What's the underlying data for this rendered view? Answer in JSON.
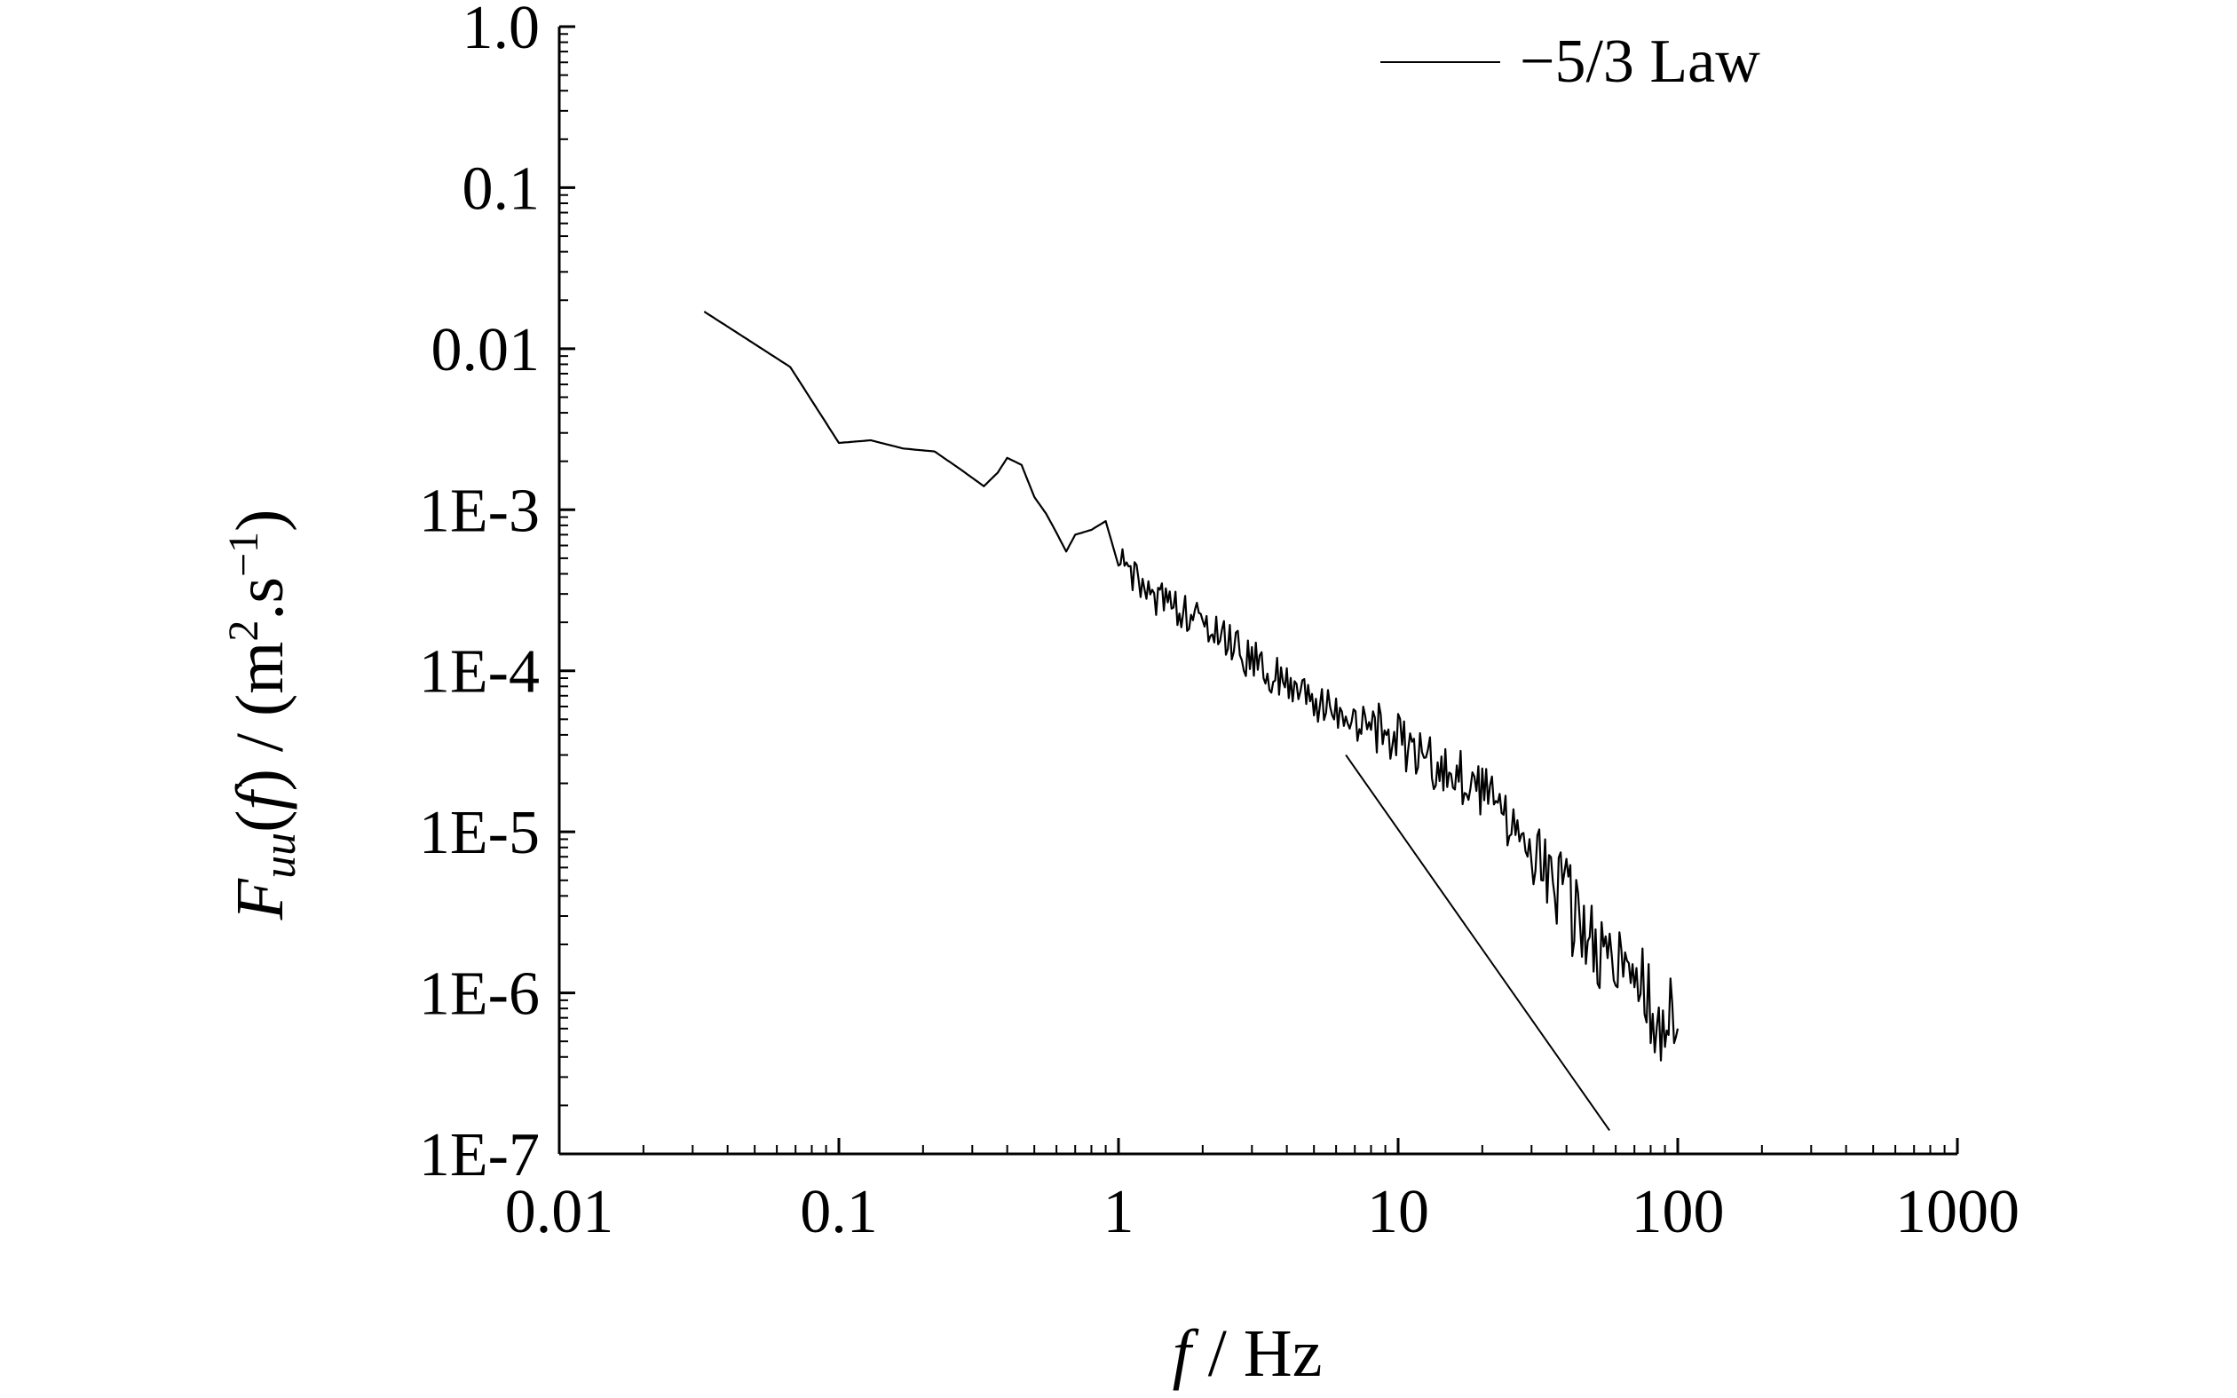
{
  "chart_data": {
    "type": "line",
    "x_scale": "log",
    "y_scale": "log",
    "xlim": [
      0.01,
      1000
    ],
    "ylim": [
      1e-07,
      1.0
    ],
    "grid": false,
    "legend_position": "top-right",
    "x_tick_labels": [
      "0.01",
      "0.1",
      "1",
      "10",
      "100",
      "1000"
    ],
    "y_tick_labels": [
      "1E-7",
      "1E-6",
      "1E-5",
      "1E-4",
      "1E-3",
      "0.01",
      "0.1",
      "1.0"
    ],
    "xlabel": {
      "var": "f",
      "unit": " / Hz"
    },
    "ylabel": {
      "main": "F",
      "sub": "uu",
      "arg": "f",
      "unit_open": " / (m",
      "sup2": "2",
      "mid": ".s",
      "supm1": "−1",
      "close": ")"
    },
    "series": [
      {
        "name": "",
        "style": "noisy",
        "color": "#000000",
        "points": [
          [
            0.033,
            0.017
          ],
          [
            0.067,
            0.0077
          ],
          [
            0.1,
            0.0026
          ],
          [
            0.13,
            0.0027
          ],
          [
            0.17,
            0.0024
          ],
          [
            0.22,
            0.0023
          ],
          [
            0.27,
            0.0018
          ],
          [
            0.33,
            0.0014
          ],
          [
            0.37,
            0.0017
          ],
          [
            0.4,
            0.0021
          ],
          [
            0.45,
            0.0019
          ],
          [
            0.5,
            0.0012
          ],
          [
            0.55,
            0.00095
          ],
          [
            0.6,
            0.00072
          ],
          [
            0.65,
            0.00055
          ],
          [
            0.7,
            0.0007
          ],
          [
            0.8,
            0.00075
          ],
          [
            0.9,
            0.00085
          ],
          [
            1.0,
            0.00045
          ],
          [
            1.2,
            0.00032
          ],
          [
            1.5,
            0.00028
          ],
          [
            2.0,
            0.00019
          ],
          [
            2.5,
            0.00015
          ],
          [
            3.0,
            0.000115
          ],
          [
            4.0,
            8.5e-05
          ],
          [
            5.0,
            6.5e-05
          ],
          [
            6.0,
            5.2e-05
          ],
          [
            8.0,
            4.5e-05
          ],
          [
            10.0,
            3.8e-05
          ],
          [
            13.0,
            2.8e-05
          ],
          [
            17.0,
            2.1e-05
          ],
          [
            20.0,
            1.8e-05
          ],
          [
            25.0,
            1.2e-05
          ],
          [
            30.0,
            8e-06
          ],
          [
            40.0,
            3.5e-06
          ],
          [
            50.0,
            2e-06
          ],
          [
            60.0,
            1.5e-06
          ],
          [
            70.0,
            1.1e-06
          ],
          [
            80.0,
            8e-07
          ],
          [
            90.0,
            7e-07
          ],
          [
            100.0,
            6e-07
          ]
        ]
      },
      {
        "name": "−5/3 Law",
        "style": "solid",
        "color": "#000000",
        "points": [
          [
            6.5,
            3e-05
          ],
          [
            57.0,
            1.4e-07
          ]
        ]
      }
    ],
    "legend": [
      {
        "label": "−5/3 Law"
      }
    ]
  }
}
